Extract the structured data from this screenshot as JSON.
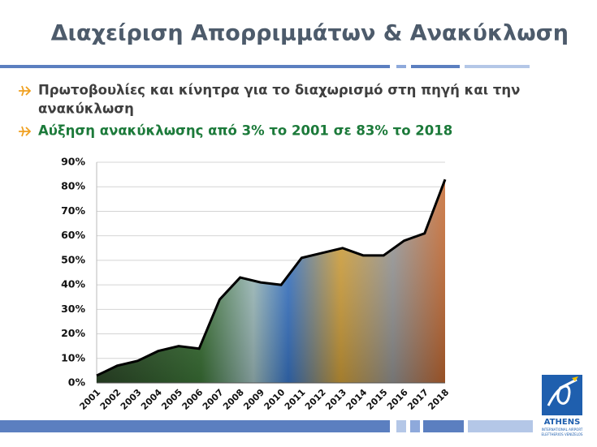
{
  "header": {
    "title": "Διαχείριση Απορριμμάτων & Ανακύκλωση"
  },
  "bullets": [
    {
      "line1": "Πρωτοβουλίες και κίνητρα για το διαχωρισμό στη πηγή και την",
      "line2": "ανακύκλωση"
    },
    {
      "line1": "Αύξηση ανακύκλωσης από 3% το 2001 σε 83% το 2018"
    }
  ],
  "chart_data": {
    "type": "area",
    "categories": [
      "2001",
      "2002",
      "2003",
      "2004",
      "2005",
      "2006",
      "2007",
      "2008",
      "2009",
      "2010",
      "2011",
      "2012",
      "2013",
      "2014",
      "2015",
      "2016",
      "2017",
      "2018"
    ],
    "values": [
      3,
      7,
      9,
      13,
      15,
      14,
      34,
      43,
      41,
      40,
      51,
      53,
      55,
      52,
      52,
      58,
      61,
      83
    ],
    "ylim": [
      0,
      90
    ],
    "yticks": [
      {
        "value": 0,
        "label": "0%"
      },
      {
        "value": 10,
        "label": "10%"
      },
      {
        "value": 20,
        "label": "20%"
      },
      {
        "value": 30,
        "label": "30%"
      },
      {
        "value": 40,
        "label": "40%"
      },
      {
        "value": 50,
        "label": "50%"
      },
      {
        "value": 60,
        "label": "60%"
      },
      {
        "value": 70,
        "label": "70%"
      },
      {
        "value": 80,
        "label": "80%"
      },
      {
        "value": 90,
        "label": "90%"
      }
    ],
    "grid": true,
    "color": "#000000"
  },
  "logo": {
    "name": "ATHENS",
    "sub1": "INTERNATIONAL AIRPORT",
    "sub2": "ELEFTHERIOS VENIZELOS"
  }
}
